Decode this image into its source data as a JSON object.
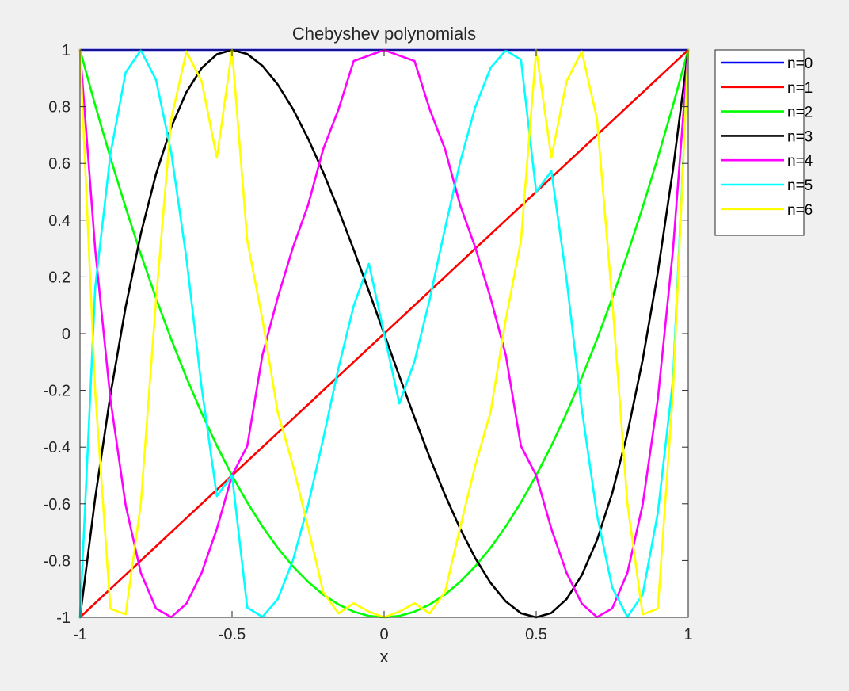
{
  "figure": {
    "background": "#f0f0f0",
    "axes_background": "#ffffff"
  },
  "chart_data": {
    "type": "line",
    "title": "Chebyshev polynomials",
    "xlabel": "x",
    "ylabel": "",
    "xlim": [
      -1,
      1
    ],
    "ylim": [
      -1,
      1
    ],
    "xticks": [
      -1,
      -0.5,
      0,
      0.5,
      1
    ],
    "xtick_labels": [
      "-1",
      "-0.5",
      "0",
      "0.5",
      "1"
    ],
    "yticks": [
      -1,
      -0.8,
      -0.6,
      -0.4,
      -0.2,
      0,
      0.2,
      0.4,
      0.6,
      0.8,
      1
    ],
    "ytick_labels": [
      "-1",
      "-0.8",
      "-0.6",
      "-0.4",
      "-0.2",
      "0",
      "0.2",
      "0.4",
      "0.6",
      "0.8",
      "1"
    ],
    "grid": false,
    "legend_position": "outside-top-right",
    "x": [
      -1,
      -0.95,
      -0.9,
      -0.85,
      -0.8,
      -0.75,
      -0.7,
      -0.65,
      -0.6,
      -0.55,
      -0.5,
      -0.45,
      -0.4,
      -0.35,
      -0.3,
      -0.25,
      -0.2,
      -0.15,
      -0.1,
      -0.05,
      0,
      0.05,
      0.1,
      0.15,
      0.2,
      0.25,
      0.3,
      0.35,
      0.4,
      0.45,
      0.5,
      0.55,
      0.6,
      0.65,
      0.7,
      0.75,
      0.8,
      0.85,
      0.9,
      0.95,
      1
    ],
    "series": [
      {
        "name": "n=0",
        "color": "#0000ff",
        "values": [
          1,
          1,
          1,
          1,
          1,
          1,
          1,
          1,
          1,
          1,
          1,
          1,
          1,
          1,
          1,
          1,
          1,
          1,
          1,
          1,
          1,
          1,
          1,
          1,
          1,
          1,
          1,
          1,
          1,
          1,
          1,
          1,
          1,
          1,
          1,
          1,
          1,
          1,
          1,
          1,
          1
        ]
      },
      {
        "name": "n=1",
        "color": "#ff0000",
        "values": [
          -1,
          -0.95,
          -0.9,
          -0.85,
          -0.8,
          -0.75,
          -0.7,
          -0.65,
          -0.6,
          -0.55,
          -0.5,
          -0.45,
          -0.4,
          -0.35,
          -0.3,
          -0.25,
          -0.2,
          -0.15,
          -0.1,
          -0.05,
          0,
          0.05,
          0.1,
          0.15,
          0.2,
          0.25,
          0.3,
          0.35,
          0.4,
          0.45,
          0.5,
          0.55,
          0.6,
          0.65,
          0.7,
          0.75,
          0.8,
          0.85,
          0.9,
          0.95,
          1
        ]
      },
      {
        "name": "n=2",
        "color": "#00ff00",
        "values": [
          1,
          0.805,
          0.62,
          0.445,
          0.28,
          0.125,
          -0.02,
          -0.155,
          -0.28,
          -0.395,
          -0.5,
          -0.595,
          -0.68,
          -0.755,
          -0.82,
          -0.875,
          -0.92,
          -0.955,
          -0.98,
          -0.995,
          -1,
          -0.995,
          -0.98,
          -0.955,
          -0.92,
          -0.875,
          -0.82,
          -0.755,
          -0.68,
          -0.595,
          -0.5,
          -0.395,
          -0.28,
          -0.155,
          -0.02,
          0.125,
          0.28,
          0.445,
          0.62,
          0.805,
          1
        ]
      },
      {
        "name": "n=3",
        "color": "#000000",
        "values": [
          -1,
          -0.5795,
          -0.216,
          0.0935,
          0.352,
          0.5625,
          0.728,
          0.8515,
          0.936,
          0.9845,
          1,
          0.9855,
          0.944,
          0.8785,
          0.792,
          0.6875,
          0.568,
          0.4365,
          0.296,
          0.1495,
          0,
          -0.1495,
          -0.296,
          -0.4365,
          -0.568,
          -0.6875,
          -0.792,
          -0.8785,
          -0.944,
          -0.9855,
          -1,
          -0.9845,
          -0.936,
          -0.8515,
          -0.728,
          -0.5625,
          -0.352,
          -0.0935,
          0.216,
          0.5795,
          1
        ]
      },
      {
        "name": "n=4",
        "color": "#ff00ff",
        "values": [
          1,
          0.2969,
          -0.2312,
          -0.6039,
          -0.8432,
          -0.9688,
          -0.9992,
          -0.9519,
          -0.8432,
          -0.6883,
          -0.5,
          -0.3962,
          -0.0752,
          0.1259,
          0.3032,
          0.4531,
          0.6512,
          0.7904,
          0.9608,
          0.98,
          1,
          0.98,
          0.9608,
          0.7904,
          0.6512,
          0.4531,
          0.3032,
          0.1259,
          -0.0752,
          -0.3962,
          -0.5,
          -0.6883,
          -0.8432,
          -0.9519,
          -0.9992,
          -0.9688,
          -0.8432,
          -0.6039,
          -0.2312,
          0.2969,
          1
        ]
      },
      {
        "name": "n=5",
        "color": "#00ffff",
        "values": [
          -1,
          0.1616,
          0.632,
          0.9203,
          0.9988,
          0.8945,
          0.6388,
          0.2653,
          -0.1904,
          -0.5728,
          -0.5,
          -0.9657,
          -0.9984,
          -0.9365,
          -0.7997,
          -0.6047,
          -0.3699,
          -0.121,
          0.0981,
          0.2463,
          0,
          -0.2463,
          -0.0981,
          0.121,
          0.3699,
          0.6047,
          0.7997,
          0.9365,
          0.9984,
          0.9657,
          0.5,
          0.5728,
          0.1904,
          -0.2653,
          -0.6388,
          -0.8945,
          -0.9988,
          -0.9203,
          -0.632,
          -0.1616,
          1
        ]
      },
      {
        "name": "n=6",
        "color": "#ffff00",
        "values": [
          1,
          -0.2038,
          -0.9696,
          -0.9893,
          -0.599,
          0.118,
          0.7568,
          0.9944,
          0.8896,
          0.6196,
          1,
          0.3282,
          0.0495,
          -0.2766,
          -0.4638,
          -0.6836,
          -0.9121,
          -0.986,
          -0.9504,
          -0.98,
          -1,
          -0.98,
          -0.9504,
          -0.986,
          -0.9121,
          -0.6836,
          -0.4638,
          -0.2766,
          0.0495,
          0.3282,
          1,
          0.6196,
          0.8896,
          0.9944,
          0.7568,
          0.118,
          -0.599,
          -0.9893,
          -0.9696,
          -0.2038,
          1
        ]
      }
    ]
  }
}
